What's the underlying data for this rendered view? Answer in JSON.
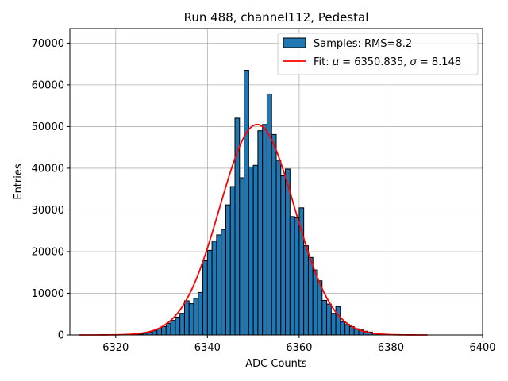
{
  "chart_data": {
    "type": "bar",
    "title": "Run 488, channel112, Pedestal",
    "xlabel": "ADC Counts",
    "ylabel": "Entries",
    "xlim": [
      6310,
      6400
    ],
    "ylim": [
      0,
      73500
    ],
    "xticks": [
      6320,
      6340,
      6360,
      6380,
      6400
    ],
    "yticks": [
      0,
      10000,
      20000,
      30000,
      40000,
      50000,
      60000,
      70000
    ],
    "grid": true,
    "legend_position": "top-right",
    "bin_width": 1,
    "series": [
      {
        "name": "Samples: RMS=8.2",
        "kind": "histogram",
        "color": "#1f77b4",
        "edge_color": "#000000",
        "bins": [
          [
            6324,
            100
          ],
          [
            6325,
            200
          ],
          [
            6326,
            400
          ],
          [
            6327,
            700
          ],
          [
            6328,
            1000
          ],
          [
            6329,
            1500
          ],
          [
            6330,
            2000
          ],
          [
            6331,
            2800
          ],
          [
            6332,
            3500
          ],
          [
            6333,
            4300
          ],
          [
            6334,
            5200
          ],
          [
            6335,
            8200
          ],
          [
            6336,
            7500
          ],
          [
            6337,
            8800
          ],
          [
            6338,
            10200
          ],
          [
            6339,
            17800
          ],
          [
            6340,
            20300
          ],
          [
            6341,
            22500
          ],
          [
            6342,
            24000
          ],
          [
            6343,
            25300
          ],
          [
            6344,
            31200
          ],
          [
            6345,
            35600
          ],
          [
            6346,
            52000
          ],
          [
            6347,
            37700
          ],
          [
            6348,
            63500
          ],
          [
            6349,
            40300
          ],
          [
            6350,
            40700
          ],
          [
            6351,
            49000
          ],
          [
            6352,
            50500
          ],
          [
            6353,
            57800
          ],
          [
            6354,
            48100
          ],
          [
            6355,
            41900
          ],
          [
            6356,
            38200
          ],
          [
            6357,
            39800
          ],
          [
            6358,
            28400
          ],
          [
            6359,
            28100
          ],
          [
            6360,
            30500
          ],
          [
            6361,
            21400
          ],
          [
            6362,
            18600
          ],
          [
            6363,
            15600
          ],
          [
            6364,
            13000
          ],
          [
            6365,
            8300
          ],
          [
            6366,
            7400
          ],
          [
            6367,
            5200
          ],
          [
            6368,
            6800
          ],
          [
            6369,
            3200
          ],
          [
            6370,
            2500
          ],
          [
            6371,
            2000
          ],
          [
            6372,
            1500
          ],
          [
            6373,
            1200
          ],
          [
            6374,
            900
          ],
          [
            6375,
            700
          ],
          [
            6376,
            400
          ],
          [
            6377,
            250
          ],
          [
            6378,
            150
          ]
        ]
      },
      {
        "name": "Fit: μ = 6350.835, σ = 8.148",
        "name_parts": {
          "prefix": "Fit: ",
          "mu_symbol": "μ",
          "mu_value": " = 6350.835, ",
          "sigma_symbol": "σ",
          "sigma_value": " = 8.148"
        },
        "kind": "gaussian",
        "color": "#ff0000",
        "mu": 6350.835,
        "sigma": 8.148,
        "amplitude": 50500,
        "x_range": [
          6312,
          6388
        ]
      }
    ]
  }
}
